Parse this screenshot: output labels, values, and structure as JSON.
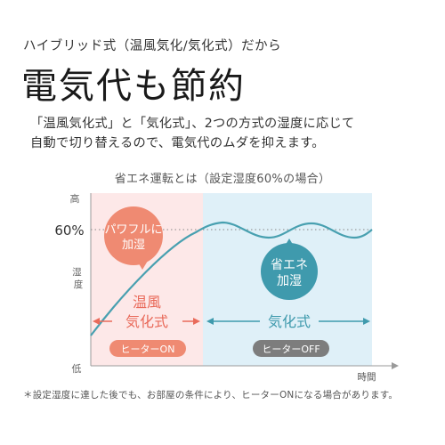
{
  "header": {
    "subtitle": "ハイブリッド式（温風気化/気化式）だから",
    "headline": "電気代も節約",
    "description_line1": "「温風気化式」と「気化式」、2つの方式の湿度に応じて",
    "description_line2": "自動で切り替えるので、電気代のムダを抑えます。"
  },
  "chart": {
    "title": "省エネ運転とは（設定湿度60%の場合）",
    "y_high": "高",
    "y_mid": "湿度",
    "y_low": "低",
    "y_setpoint": "60%",
    "x_label": "時間",
    "left_zone": {
      "bubble_line1": "パワフルに",
      "bubble_line2": "加湿",
      "mode_line1": "温風",
      "mode_line2": "気化式",
      "heater_pill": "ヒーターON",
      "bubble_color": "#ef8a72",
      "bg_color": "#fde8e8",
      "accent_color": "#e96a5a"
    },
    "right_zone": {
      "bubble_line1": "省エネ",
      "bubble_line2": "加湿",
      "mode_line": "気化式",
      "heater_pill": "ヒーターOFF",
      "bubble_color": "#3f9aad",
      "bg_color": "#dff0f8",
      "accent_color": "#3f9aad"
    },
    "line_color": "#48a0b0"
  },
  "footnote": "＊設定湿度に達した後でも、お部屋の条件により、ヒーターONになる場合があります。"
}
